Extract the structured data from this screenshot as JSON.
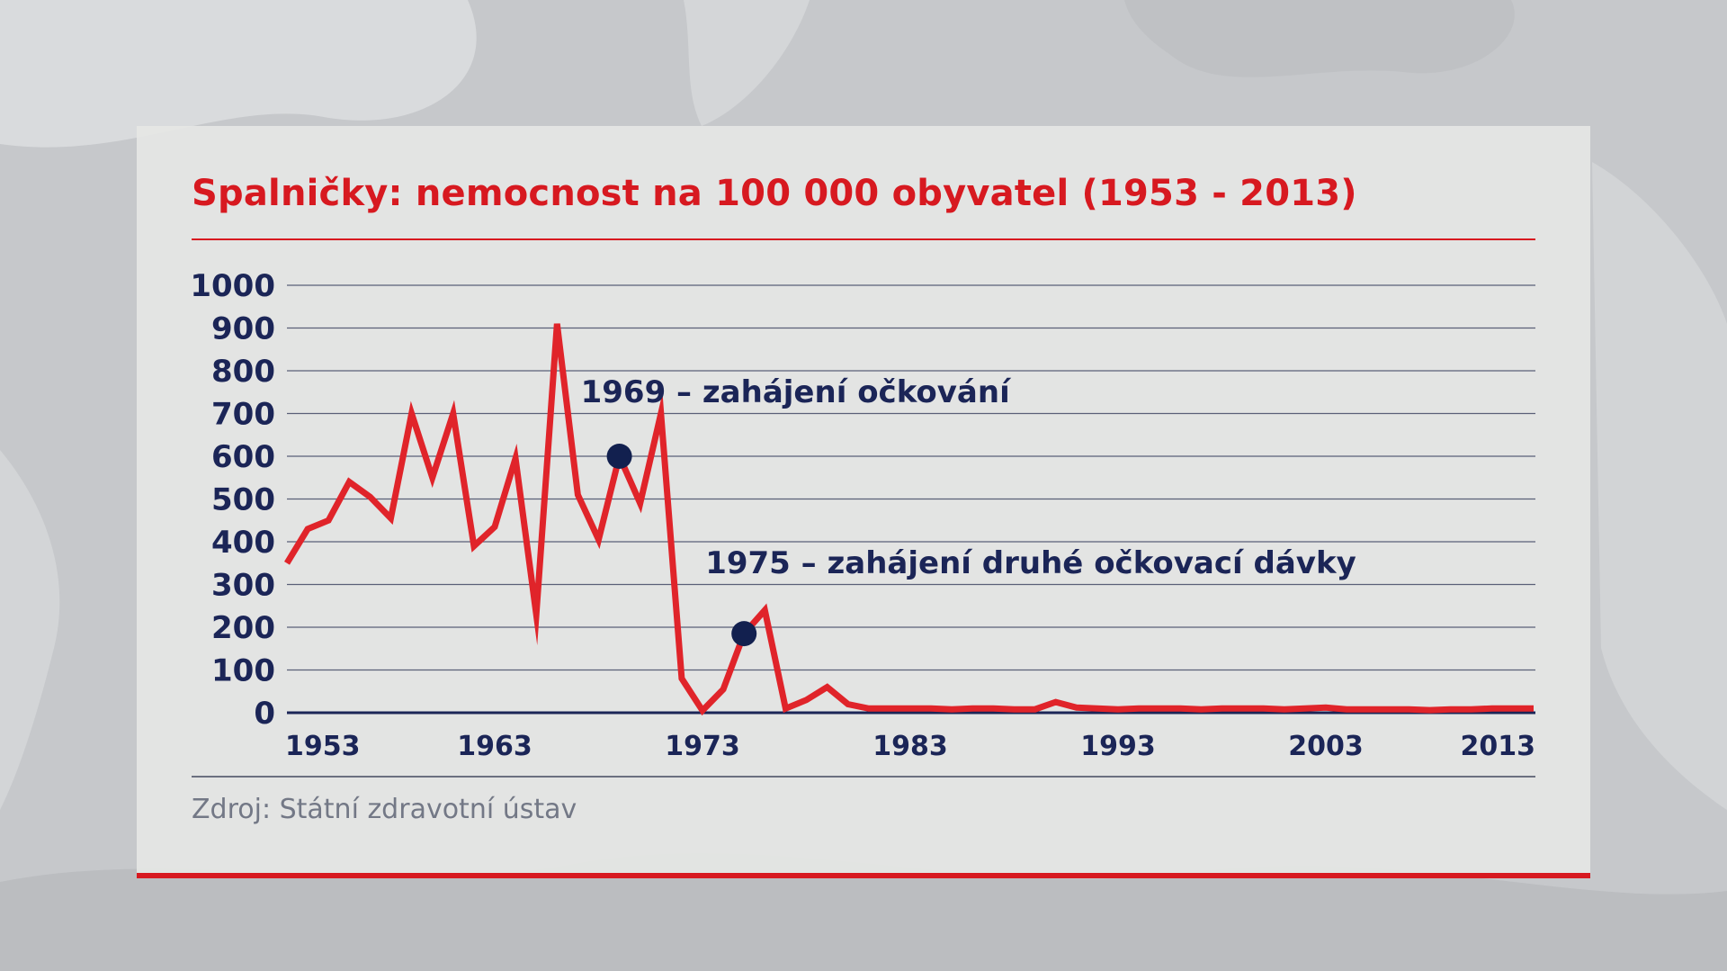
{
  "chart_data": {
    "type": "line",
    "title": "Spalničky: nemocnost na 100 000 obyvatel (1953 - 2013)",
    "xlabel": "",
    "ylabel": "",
    "xlim": [
      1953,
      2013
    ],
    "ylim": [
      0,
      1000
    ],
    "y_ticks": [
      0,
      100,
      200,
      300,
      400,
      500,
      600,
      700,
      800,
      900,
      1000
    ],
    "x_ticks": [
      1953,
      1963,
      1973,
      1983,
      1993,
      2003,
      2013
    ],
    "grid": true,
    "series": [
      {
        "color": "#e0242a",
        "x": [
          1953,
          1954,
          1955,
          1956,
          1957,
          1958,
          1959,
          1960,
          1961,
          1962,
          1963,
          1964,
          1965,
          1966,
          1967,
          1968,
          1969,
          1970,
          1971,
          1972,
          1973,
          1974,
          1975,
          1976,
          1977,
          1978,
          1979,
          1980,
          1981,
          1982,
          1983,
          1984,
          1985,
          1986,
          1987,
          1988,
          1989,
          1990,
          1991,
          1992,
          1993,
          1994,
          1995,
          1996,
          1997,
          1998,
          1999,
          2000,
          2001,
          2002,
          2003,
          2004,
          2005,
          2006,
          2007,
          2008,
          2009,
          2010,
          2011,
          2012,
          2013
        ],
        "y": [
          350,
          430,
          450,
          540,
          505,
          455,
          700,
          550,
          700,
          390,
          435,
          595,
          230,
          910,
          510,
          405,
          600,
          490,
          700,
          80,
          5,
          55,
          185,
          240,
          10,
          30,
          60,
          20,
          10,
          10,
          10,
          10,
          8,
          10,
          10,
          8,
          8,
          25,
          12,
          10,
          8,
          10,
          10,
          10,
          8,
          10,
          10,
          10,
          8,
          10,
          12,
          8,
          8,
          8,
          8,
          6,
          8,
          8,
          10,
          10,
          10
        ]
      }
    ],
    "markers": [
      {
        "x": 1969,
        "y": 600,
        "color": "#12204f"
      },
      {
        "x": 1975,
        "y": 185,
        "color": "#12204f"
      }
    ],
    "annotations": [
      {
        "text": "1969 – zahájení očkování",
        "x": 1969,
        "y": 752
      },
      {
        "text": "1975 – zahájení druhé očkovací dávky",
        "x": 1975,
        "y": 352
      }
    ],
    "source": "Zdroj: Státní zdravotní ústav"
  },
  "colors": {
    "accent": "#d71920",
    "line": "#e0242a",
    "text": "#1b2557",
    "grid": "#5a5f77",
    "source_text": "#737886"
  }
}
